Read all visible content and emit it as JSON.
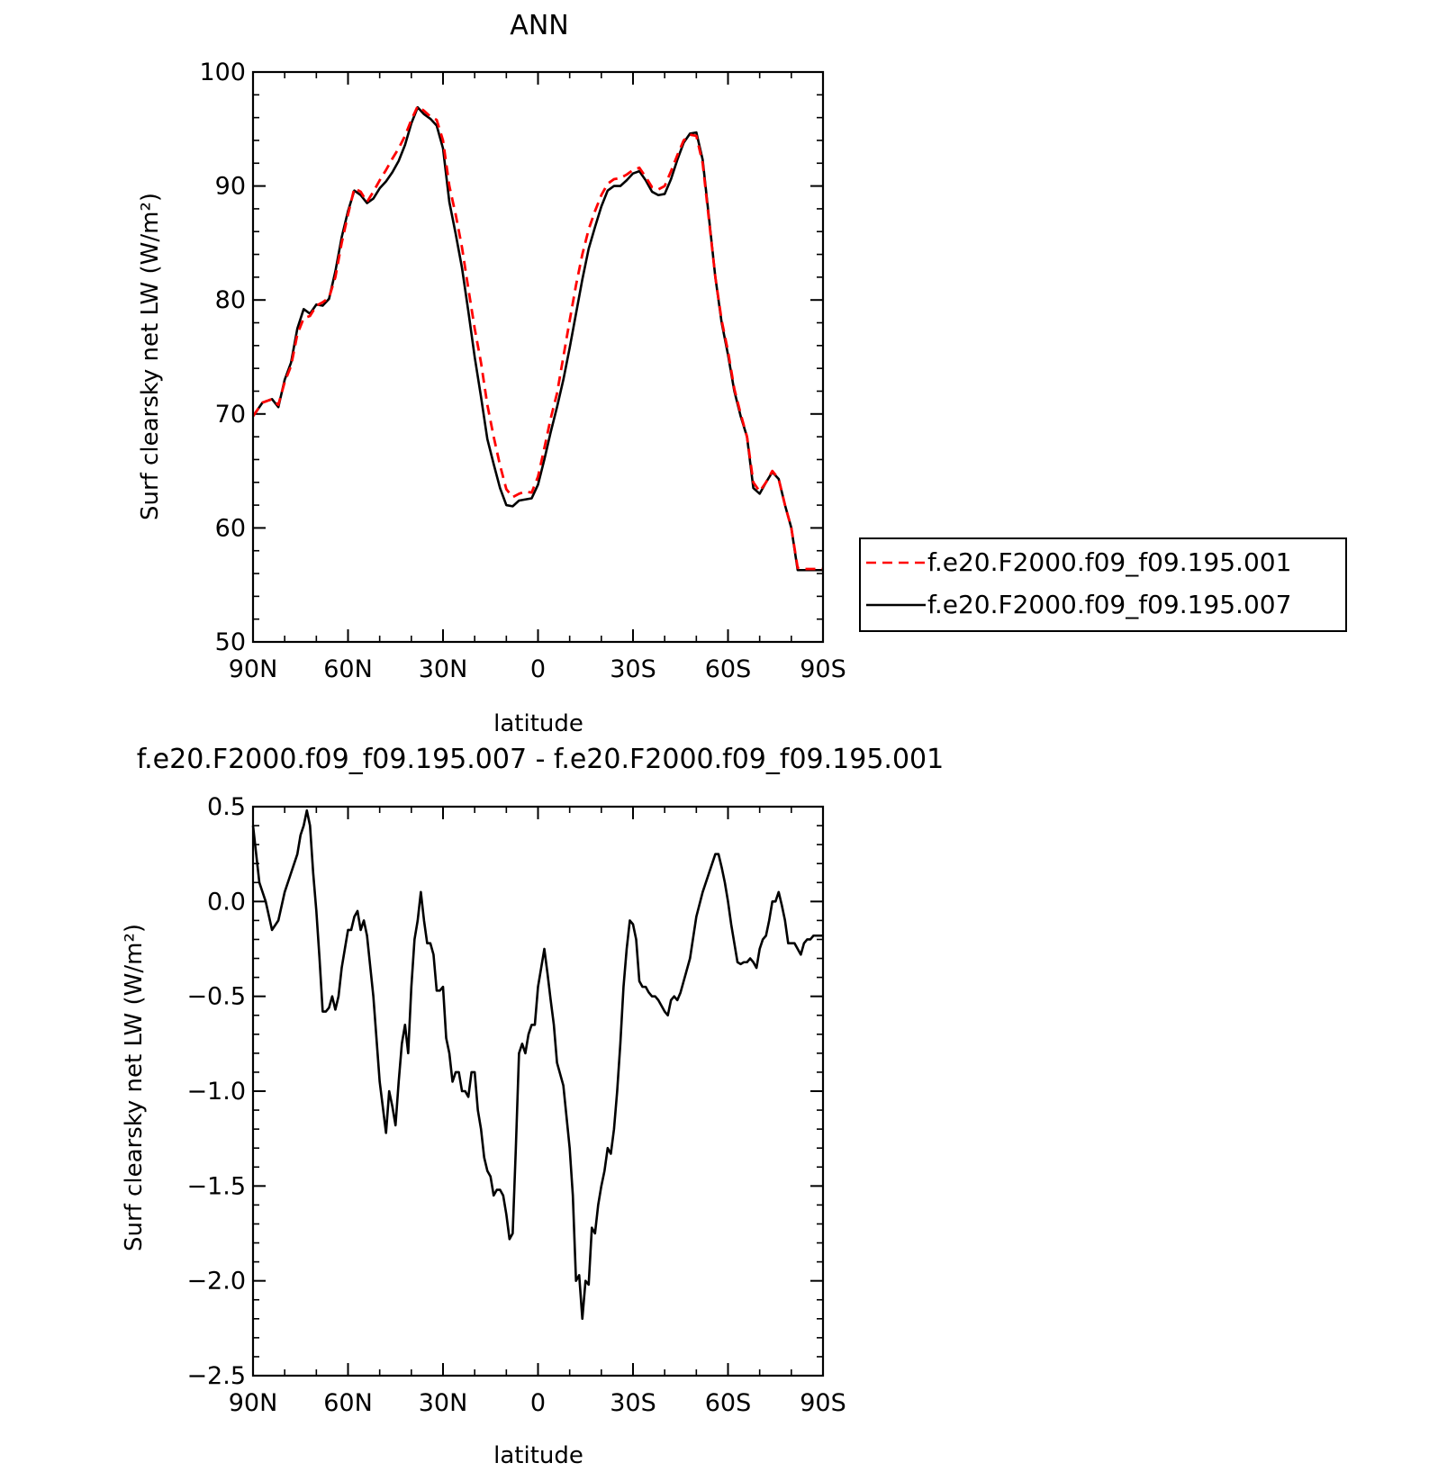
{
  "chart_data": [
    {
      "type": "line",
      "title": "ANN",
      "xlabel": "latitude",
      "ylabel": "Surf clearsky net LW (W/m²)",
      "xlim": [
        90,
        -90
      ],
      "ylim": [
        50,
        100
      ],
      "x_ticks": [
        90,
        60,
        30,
        0,
        -30,
        -60,
        -90
      ],
      "x_tick_labels": [
        "90N",
        "60N",
        "30N",
        "0",
        "30S",
        "60S",
        "90S"
      ],
      "y_ticks": [
        50,
        60,
        70,
        80,
        90,
        100
      ],
      "y_tick_labels": [
        "50",
        "60",
        "70",
        "80",
        "90",
        "100"
      ],
      "grid": false,
      "legend_position": "right",
      "series": [
        {
          "name": "f.e20.F2000.f09_f09.195.001",
          "color": "#ff0000",
          "dash": "dashed",
          "x": [
            90,
            87,
            84,
            82,
            80,
            78,
            76,
            74,
            72,
            70,
            68,
            66,
            64,
            62,
            60,
            58,
            56,
            54,
            52,
            50,
            48,
            46,
            44,
            42,
            40,
            38,
            36,
            34,
            32,
            30,
            28,
            26,
            24,
            22,
            20,
            18,
            16,
            14,
            12,
            10,
            8,
            6,
            4,
            2,
            0,
            -2,
            -4,
            -6,
            -8,
            -10,
            -12,
            -14,
            -16,
            -18,
            -20,
            -22,
            -24,
            -26,
            -28,
            -30,
            -32,
            -34,
            -36,
            -38,
            -40,
            -42,
            -44,
            -46,
            -48,
            -50,
            -52,
            -54,
            -56,
            -58,
            -60,
            -62,
            -64,
            -66,
            -68,
            -70,
            -72,
            -74,
            -76,
            -78,
            -80,
            -82,
            -84,
            -86,
            -88,
            -90
          ],
          "y": [
            69.8,
            71.0,
            71.3,
            70.8,
            72.8,
            74.2,
            77.0,
            78.4,
            78.6,
            79.5,
            79.8,
            80.2,
            82.0,
            85.0,
            87.5,
            89.8,
            89.5,
            88.6,
            89.5,
            90.5,
            91.4,
            92.4,
            93.3,
            94.4,
            95.8,
            97.0,
            96.6,
            96.1,
            95.8,
            94.0,
            90.0,
            87.5,
            84.6,
            81.0,
            77.5,
            74.5,
            70.8,
            68.0,
            65.5,
            63.4,
            62.7,
            63.0,
            63.2,
            63.1,
            64.5,
            67.0,
            69.6,
            71.8,
            75.0,
            78.2,
            81.3,
            84.0,
            86.2,
            87.8,
            89.2,
            90.2,
            90.6,
            90.7,
            91.0,
            91.4,
            91.6,
            90.8,
            89.9,
            89.7,
            90.0,
            91.3,
            92.7,
            94.0,
            94.5,
            94.4,
            92.0,
            87.0,
            82.0,
            78.2,
            75.5,
            72.2,
            70.0,
            68.0,
            64.0,
            63.2,
            64.0,
            65.0,
            64.3,
            62.0,
            60.0,
            56.5,
            56.4,
            56.4,
            56.4,
            56.4
          ]
        },
        {
          "name": "f.e20.F2000.f09_f09.195.007",
          "color": "#000000",
          "dash": "solid",
          "x": [
            90,
            87,
            84,
            82,
            80,
            78,
            76,
            74,
            72,
            70,
            68,
            66,
            64,
            62,
            60,
            58,
            56,
            54,
            52,
            50,
            48,
            46,
            44,
            42,
            40,
            38,
            36,
            34,
            32,
            30,
            28,
            26,
            24,
            22,
            20,
            18,
            16,
            14,
            12,
            10,
            8,
            6,
            4,
            2,
            0,
            -2,
            -4,
            -6,
            -8,
            -10,
            -12,
            -14,
            -16,
            -18,
            -20,
            -22,
            -24,
            -26,
            -28,
            -30,
            -32,
            -34,
            -36,
            -38,
            -40,
            -42,
            -44,
            -46,
            -48,
            -50,
            -52,
            -54,
            -56,
            -58,
            -60,
            -62,
            -64,
            -66,
            -68,
            -70,
            -72,
            -74,
            -76,
            -78,
            -80,
            -82,
            -84,
            -86,
            -88,
            -90
          ],
          "y": [
            69.8,
            71.0,
            71.3,
            70.6,
            73.0,
            74.5,
            77.5,
            79.2,
            78.8,
            79.6,
            79.5,
            80.1,
            82.5,
            85.5,
            87.8,
            89.6,
            89.2,
            88.5,
            88.9,
            89.8,
            90.4,
            91.2,
            92.2,
            93.6,
            95.5,
            96.9,
            96.3,
            95.9,
            95.3,
            93.3,
            88.6,
            85.8,
            82.8,
            79.0,
            75.0,
            71.5,
            67.8,
            65.6,
            63.5,
            62.0,
            61.9,
            62.4,
            62.5,
            62.6,
            63.8,
            66.0,
            68.4,
            70.6,
            73.0,
            75.8,
            78.8,
            81.8,
            84.5,
            86.4,
            88.2,
            89.6,
            90.0,
            90.0,
            90.5,
            91.1,
            91.3,
            90.5,
            89.5,
            89.2,
            89.3,
            90.6,
            92.3,
            93.8,
            94.6,
            94.7,
            92.3,
            87.2,
            82.0,
            78.0,
            75.2,
            72.0,
            69.8,
            68.0,
            63.5,
            63.0,
            64.0,
            64.9,
            64.3,
            62.0,
            60.0,
            56.3,
            56.3,
            56.3,
            56.3,
            56.3
          ]
        }
      ]
    },
    {
      "type": "line",
      "title": "f.e20.F2000.f09_f09.195.007 - f.e20.F2000.f09_f09.195.001",
      "xlabel": "latitude",
      "ylabel": "Surf clearsky net LW (W/m²)",
      "xlim": [
        90,
        -90
      ],
      "ylim": [
        -2.5,
        0.5
      ],
      "x_ticks": [
        90,
        60,
        30,
        0,
        -30,
        -60,
        -90
      ],
      "x_tick_labels": [
        "90N",
        "60N",
        "30N",
        "0",
        "30S",
        "60S",
        "90S"
      ],
      "y_ticks": [
        0.5,
        0.0,
        -0.5,
        -1.0,
        -1.5,
        -2.0,
        -2.5
      ],
      "y_tick_labels": [
        "0.5",
        "0.0",
        "−0.5",
        "−1.0",
        "−1.5",
        "−2.0",
        "−2.5"
      ],
      "grid": false,
      "series": [
        {
          "color": "#000000",
          "dash": "solid",
          "x": [
            90,
            88,
            86,
            84,
            82,
            80,
            78,
            76,
            75,
            74,
            73,
            72,
            71,
            70,
            69,
            68,
            67,
            66,
            65,
            64,
            63,
            62,
            61,
            60,
            59,
            58,
            57,
            56,
            55,
            54,
            52,
            50,
            48,
            47,
            46,
            45,
            44,
            43,
            42,
            41,
            40,
            39,
            38,
            37,
            36,
            35,
            34,
            33,
            32,
            31,
            30,
            29,
            28,
            27,
            26,
            25,
            24,
            23,
            22,
            21,
            20,
            19,
            18,
            17,
            16,
            15,
            14,
            13,
            12,
            11,
            10,
            9,
            8,
            7,
            6,
            5,
            4,
            3,
            2,
            1,
            0,
            -1,
            -2,
            -3,
            -4,
            -5,
            -6,
            -8,
            -10,
            -11,
            -12,
            -13,
            -14,
            -15,
            -16,
            -17,
            -18,
            -19,
            -20,
            -21,
            -22,
            -23,
            -24,
            -25,
            -26,
            -27,
            -28,
            -29,
            -30,
            -31,
            -32,
            -33,
            -34,
            -35,
            -36,
            -37,
            -38,
            -40,
            -41,
            -42,
            -43,
            -44,
            -45,
            -46,
            -48,
            -50,
            -52,
            -54,
            -55,
            -56,
            -57,
            -58,
            -59,
            -60,
            -61,
            -62,
            -63,
            -64,
            -65,
            -66,
            -67,
            -68,
            -69,
            -70,
            -71,
            -72,
            -73,
            -74,
            -75,
            -76,
            -77,
            -78,
            -79,
            -80,
            -81,
            -82,
            -83,
            -84,
            -85,
            -86,
            -87,
            -88,
            -89,
            -90
          ],
          "y": [
            0.4,
            0.1,
            0.0,
            -0.15,
            -0.1,
            0.05,
            0.15,
            0.25,
            0.35,
            0.4,
            0.48,
            0.4,
            0.15,
            -0.05,
            -0.3,
            -0.58,
            -0.58,
            -0.56,
            -0.5,
            -0.57,
            -0.5,
            -0.35,
            -0.25,
            -0.15,
            -0.15,
            -0.08,
            -0.05,
            -0.15,
            -0.1,
            -0.18,
            -0.5,
            -0.95,
            -1.22,
            -1.0,
            -1.08,
            -1.18,
            -0.95,
            -0.75,
            -0.65,
            -0.8,
            -0.45,
            -0.2,
            -0.1,
            0.05,
            -0.1,
            -0.22,
            -0.22,
            -0.28,
            -0.47,
            -0.47,
            -0.45,
            -0.72,
            -0.8,
            -0.95,
            -0.9,
            -0.9,
            -1.0,
            -1.0,
            -1.03,
            -0.9,
            -0.9,
            -1.1,
            -1.2,
            -1.35,
            -1.42,
            -1.45,
            -1.55,
            -1.52,
            -1.52,
            -1.55,
            -1.65,
            -1.78,
            -1.75,
            -1.3,
            -0.8,
            -0.75,
            -0.8,
            -0.7,
            -0.65,
            -0.65,
            -0.45,
            -0.35,
            -0.25,
            -0.38,
            -0.52,
            -0.65,
            -0.85,
            -0.97,
            -1.3,
            -1.55,
            -2.0,
            -1.97,
            -2.2,
            -2.0,
            -2.02,
            -1.72,
            -1.75,
            -1.6,
            -1.5,
            -1.42,
            -1.3,
            -1.33,
            -1.2,
            -1.0,
            -0.75,
            -0.45,
            -0.25,
            -0.1,
            -0.12,
            -0.2,
            -0.42,
            -0.45,
            -0.45,
            -0.48,
            -0.5,
            -0.5,
            -0.52,
            -0.58,
            -0.6,
            -0.52,
            -0.5,
            -0.52,
            -0.48,
            -0.42,
            -0.3,
            -0.08,
            0.05,
            0.15,
            0.2,
            0.25,
            0.25,
            0.18,
            0.1,
            0.0,
            -0.12,
            -0.22,
            -0.32,
            -0.33,
            -0.32,
            -0.32,
            -0.3,
            -0.32,
            -0.35,
            -0.25,
            -0.2,
            -0.18,
            -0.1,
            0.0,
            0.0,
            0.05,
            -0.02,
            -0.1,
            -0.22,
            -0.22,
            -0.22,
            -0.25,
            -0.28,
            -0.22,
            -0.2,
            -0.2,
            -0.18,
            -0.18,
            -0.18,
            -0.18
          ]
        }
      ]
    }
  ]
}
